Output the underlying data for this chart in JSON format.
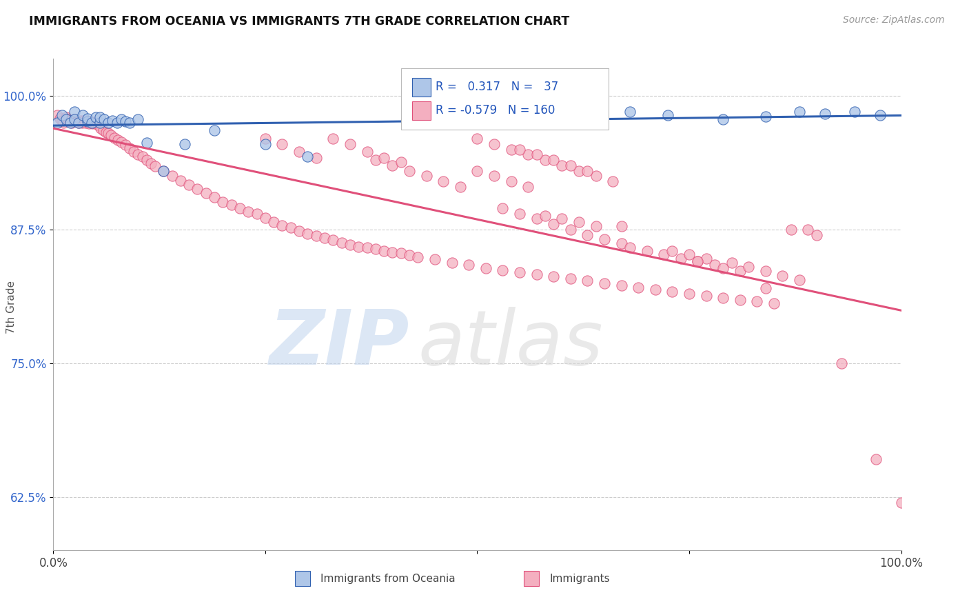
{
  "title": "IMMIGRANTS FROM OCEANIA VS IMMIGRANTS 7TH GRADE CORRELATION CHART",
  "source": "Source: ZipAtlas.com",
  "ylabel": "7th Grade",
  "ytick_labels": [
    "100.0%",
    "87.5%",
    "75.0%",
    "62.5%"
  ],
  "ytick_positions": [
    1.0,
    0.875,
    0.75,
    0.625
  ],
  "legend_label_blue": "Immigrants from Oceania",
  "legend_label_pink": "Immigrants",
  "R_blue": 0.317,
  "N_blue": 37,
  "R_pink": -0.579,
  "N_pink": 160,
  "blue_color": "#aec6e8",
  "pink_color": "#f4afc0",
  "blue_line_color": "#3060b0",
  "pink_line_color": "#e0507a",
  "background_color": "#ffffff",
  "xmin": 0.0,
  "xmax": 1.0,
  "ymin": 0.575,
  "ymax": 1.035,
  "blue_scatter_x": [
    0.005,
    0.01,
    0.015,
    0.02,
    0.025,
    0.025,
    0.03,
    0.035,
    0.04,
    0.04,
    0.045,
    0.05,
    0.055,
    0.055,
    0.06,
    0.065,
    0.07,
    0.075,
    0.08,
    0.085,
    0.09,
    0.1,
    0.11,
    0.13,
    0.155,
    0.19,
    0.25,
    0.3,
    0.54,
    0.68,
    0.725,
    0.79,
    0.84,
    0.88,
    0.91,
    0.945,
    0.975
  ],
  "blue_scatter_y": [
    0.975,
    0.982,
    0.978,
    0.975,
    0.985,
    0.978,
    0.975,
    0.982,
    0.976,
    0.979,
    0.975,
    0.98,
    0.975,
    0.98,
    0.978,
    0.975,
    0.977,
    0.975,
    0.978,
    0.976,
    0.975,
    0.978,
    0.956,
    0.93,
    0.955,
    0.968,
    0.955,
    0.943,
    0.988,
    0.985,
    0.982,
    0.978,
    0.981,
    0.985,
    0.983,
    0.985,
    0.982
  ],
  "pink_scatter_x": [
    0.005,
    0.008,
    0.01,
    0.012,
    0.015,
    0.018,
    0.02,
    0.022,
    0.025,
    0.028,
    0.03,
    0.032,
    0.034,
    0.036,
    0.038,
    0.04,
    0.042,
    0.044,
    0.046,
    0.048,
    0.05,
    0.053,
    0.056,
    0.059,
    0.062,
    0.065,
    0.068,
    0.072,
    0.076,
    0.08,
    0.085,
    0.09,
    0.095,
    0.1,
    0.105,
    0.11,
    0.115,
    0.12,
    0.13,
    0.14,
    0.15,
    0.16,
    0.17,
    0.18,
    0.19,
    0.2,
    0.21,
    0.22,
    0.23,
    0.24,
    0.25,
    0.26,
    0.27,
    0.28,
    0.29,
    0.3,
    0.31,
    0.32,
    0.33,
    0.34,
    0.35,
    0.36,
    0.37,
    0.38,
    0.39,
    0.4,
    0.41,
    0.42,
    0.43,
    0.45,
    0.47,
    0.49,
    0.51,
    0.53,
    0.55,
    0.57,
    0.59,
    0.61,
    0.63,
    0.65,
    0.67,
    0.69,
    0.71,
    0.73,
    0.75,
    0.77,
    0.79,
    0.81,
    0.83,
    0.85,
    0.87,
    0.5,
    0.52,
    0.54,
    0.56,
    0.58,
    0.6,
    0.62,
    0.64,
    0.66,
    0.55,
    0.57,
    0.59,
    0.61,
    0.63,
    0.38,
    0.4,
    0.42,
    0.44,
    0.46,
    0.48,
    0.33,
    0.35,
    0.37,
    0.39,
    0.41,
    0.25,
    0.27,
    0.29,
    0.31,
    0.53,
    0.55,
    0.57,
    0.59,
    0.61,
    0.63,
    0.65,
    0.67,
    0.68,
    0.7,
    0.72,
    0.74,
    0.76,
    0.78,
    0.79,
    0.81,
    0.58,
    0.6,
    0.62,
    0.64,
    0.73,
    0.75,
    0.77,
    0.8,
    0.82,
    0.84,
    0.86,
    0.88,
    0.9,
    0.5,
    0.52,
    0.54,
    0.56,
    0.67,
    0.76,
    0.84,
    0.89,
    0.93,
    0.97,
    1.0
  ],
  "pink_scatter_y": [
    0.982,
    0.979,
    0.977,
    0.975,
    0.98,
    0.978,
    0.977,
    0.975,
    0.978,
    0.976,
    0.975,
    0.977,
    0.975,
    0.977,
    0.975,
    0.976,
    0.974,
    0.976,
    0.974,
    0.975,
    0.974,
    0.972,
    0.97,
    0.968,
    0.966,
    0.965,
    0.963,
    0.961,
    0.959,
    0.957,
    0.954,
    0.951,
    0.948,
    0.945,
    0.943,
    0.94,
    0.937,
    0.934,
    0.93,
    0.925,
    0.921,
    0.917,
    0.913,
    0.909,
    0.905,
    0.901,
    0.898,
    0.895,
    0.892,
    0.89,
    0.886,
    0.882,
    0.879,
    0.877,
    0.874,
    0.871,
    0.869,
    0.867,
    0.865,
    0.863,
    0.861,
    0.859,
    0.858,
    0.857,
    0.855,
    0.854,
    0.853,
    0.851,
    0.849,
    0.847,
    0.844,
    0.842,
    0.839,
    0.837,
    0.835,
    0.833,
    0.831,
    0.829,
    0.827,
    0.825,
    0.823,
    0.821,
    0.819,
    0.817,
    0.815,
    0.813,
    0.811,
    0.809,
    0.808,
    0.806,
    0.875,
    0.96,
    0.955,
    0.95,
    0.945,
    0.94,
    0.935,
    0.93,
    0.925,
    0.92,
    0.95,
    0.945,
    0.94,
    0.935,
    0.93,
    0.94,
    0.935,
    0.93,
    0.925,
    0.92,
    0.915,
    0.96,
    0.955,
    0.948,
    0.942,
    0.938,
    0.96,
    0.955,
    0.948,
    0.942,
    0.895,
    0.89,
    0.885,
    0.88,
    0.875,
    0.87,
    0.866,
    0.862,
    0.858,
    0.855,
    0.852,
    0.848,
    0.845,
    0.842,
    0.839,
    0.836,
    0.888,
    0.885,
    0.882,
    0.878,
    0.855,
    0.852,
    0.848,
    0.844,
    0.84,
    0.836,
    0.832,
    0.828,
    0.87,
    0.93,
    0.925,
    0.92,
    0.915,
    0.878,
    0.845,
    0.82,
    0.875,
    0.75,
    0.66,
    0.62
  ]
}
